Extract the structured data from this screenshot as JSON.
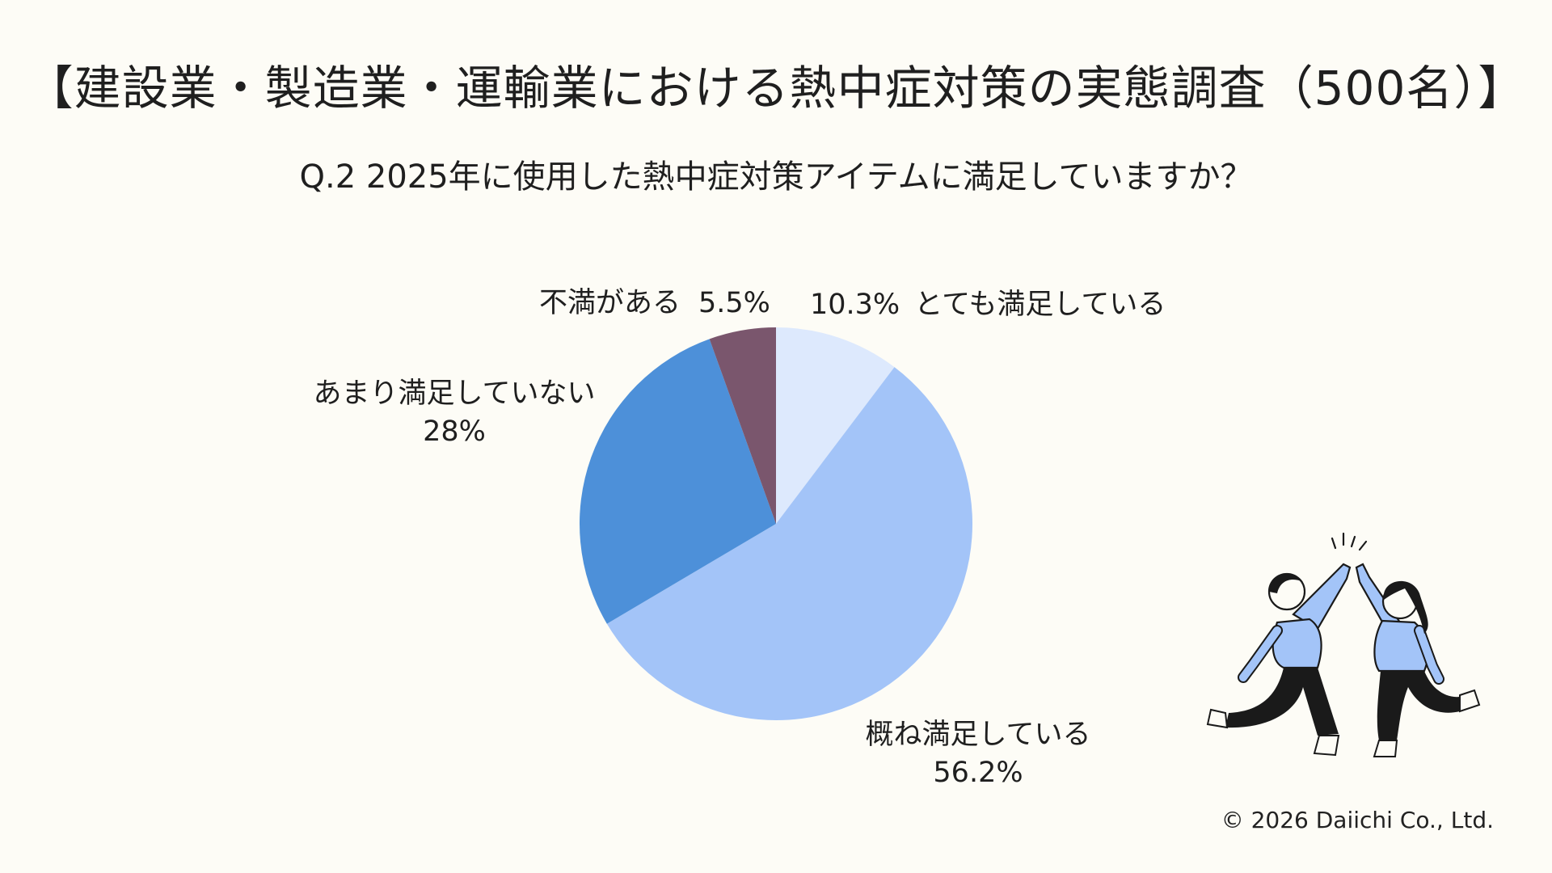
{
  "title": "【建設業・製造業・運輸業における熱中症対策の実態調査（500名）】",
  "subtitle": "Q.2 2025年に使用した熱中症対策アイテムに満足していますか？",
  "copyright": "© 2026 Daiichi Co., Ltd.",
  "chart_data": {
    "type": "pie",
    "categories": [
      "とても満足している",
      "概ね満足している",
      "あまり満足していない",
      "不満がある"
    ],
    "values": [
      10.3,
      56.2,
      28,
      5.5
    ],
    "value_labels": [
      "10.3%",
      "56.2%",
      "28%",
      "5.5%"
    ],
    "colors": [
      "#dde9fd",
      "#a3c4f8",
      "#4d90d9",
      "#7a566d"
    ],
    "start": "12 o'clock",
    "direction": "clockwise",
    "labels": {
      "very_satisfied": {
        "name": "とても満足している",
        "value": "10.3%"
      },
      "mostly_satisfied": {
        "name": "概ね満足している",
        "value": "56.2%"
      },
      "not_very_satisfied": {
        "name": "あまり満足していない",
        "value": "28%"
      },
      "dissatisfied": {
        "name": "不満がある",
        "value": "5.5%"
      }
    }
  }
}
